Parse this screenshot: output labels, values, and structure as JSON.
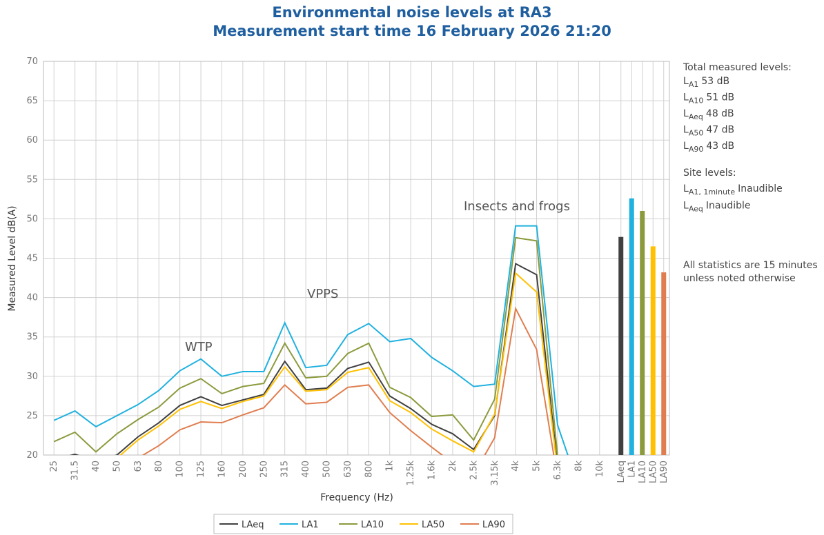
{
  "chart_data": {
    "type": "line",
    "title": [
      "Environmental noise levels at RA3",
      "Measurement start time 16 February 2026 21:20"
    ],
    "y_label": "Measured Level dB(A)",
    "x_label": "Frequency (Hz)",
    "categories": [
      "25",
      "31.5",
      "40",
      "50",
      "63",
      "80",
      "100",
      "125",
      "160",
      "200",
      "250",
      "315",
      "400",
      "500",
      "630",
      "800",
      "1k",
      "1.25k",
      "1.6k",
      "2k",
      "2.5k",
      "3.15k",
      "4k",
      "5k",
      "6.3k",
      "8k",
      "10k"
    ],
    "series": [
      {
        "name": "LAeq",
        "color": "#404040",
        "values": [
          19.4,
          20.1,
          19.2,
          20.0,
          22.3,
          24.1,
          26.3,
          27.4,
          26.3,
          27.0,
          27.7,
          31.9,
          28.3,
          28.5,
          31.0,
          31.8,
          27.5,
          25.9,
          23.9,
          22.7,
          20.7,
          25.0,
          44.3,
          42.9,
          18.5,
          null,
          null
        ]
      },
      {
        "name": "LA1",
        "color": "#1fb1df",
        "values": [
          24.4,
          25.6,
          23.6,
          25.0,
          26.4,
          28.2,
          30.7,
          32.2,
          30.0,
          30.6,
          30.6,
          36.8,
          31.1,
          31.4,
          35.3,
          36.7,
          34.4,
          34.8,
          32.4,
          30.7,
          28.7,
          29.0,
          49.1,
          49.1,
          23.8,
          16.0,
          null
        ]
      },
      {
        "name": "LA10",
        "color": "#8b9a3c",
        "values": [
          21.7,
          22.9,
          20.4,
          22.7,
          24.5,
          26.1,
          28.5,
          29.7,
          27.8,
          28.7,
          29.1,
          34.2,
          29.8,
          30.0,
          32.9,
          34.2,
          28.6,
          27.3,
          24.9,
          25.1,
          21.9,
          27.1,
          47.6,
          47.2,
          19.8,
          null,
          null
        ]
      },
      {
        "name": "LA50",
        "color": "#ffc000",
        "values": [
          null,
          null,
          null,
          19.6,
          21.9,
          23.7,
          25.8,
          26.8,
          25.9,
          26.8,
          27.5,
          31.2,
          28.1,
          28.3,
          30.5,
          31.1,
          26.9,
          25.4,
          23.3,
          21.8,
          20.4,
          25.2,
          43.1,
          40.7,
          18.0,
          null,
          null
        ]
      },
      {
        "name": "LA90",
        "color": "#e07d4e",
        "values": [
          null,
          null,
          null,
          null,
          19.6,
          21.2,
          23.2,
          24.2,
          24.1,
          25.1,
          26.0,
          28.9,
          26.5,
          26.7,
          28.6,
          28.9,
          25.4,
          23.1,
          21.0,
          19.0,
          17.5,
          22.2,
          38.6,
          33.4,
          17.0,
          null,
          null
        ]
      }
    ],
    "bars": {
      "categories": [
        "LAeq",
        "LA1",
        "LA10",
        "LA50",
        "LA90"
      ],
      "values": [
        47.7,
        52.6,
        51.0,
        46.5,
        43.2
      ]
    },
    "ylim": [
      20,
      70
    ],
    "yticks": [
      20,
      25,
      30,
      35,
      40,
      45,
      50,
      55,
      60,
      65,
      70
    ],
    "grid": true,
    "legend": "bottom",
    "annotations": [
      "WTP",
      "VPPS",
      "Insects and frogs"
    ],
    "side_notes": {
      "total_heading": "Total measured levels:",
      "total": [
        {
          "symbol": "L",
          "sub": "A1",
          "text": "53 dB"
        },
        {
          "symbol": "L",
          "sub": "A10",
          "text": "51 dB"
        },
        {
          "symbol": "L",
          "sub": "Aeq",
          "text": "48 dB"
        },
        {
          "symbol": "L",
          "sub": "A50",
          "text": "47 dB"
        },
        {
          "symbol": "L",
          "sub": "A90",
          "text": "43 dB"
        }
      ],
      "site_heading": "Site levels:",
      "site": [
        {
          "symbol": "L",
          "sub": "A1, 1minute",
          "text": "Inaudible"
        },
        {
          "symbol": "L",
          "sub": "Aeq",
          "text": "Inaudible"
        }
      ],
      "note": [
        "All statistics are 15 minutes",
        "unless noted otherwise"
      ]
    }
  }
}
